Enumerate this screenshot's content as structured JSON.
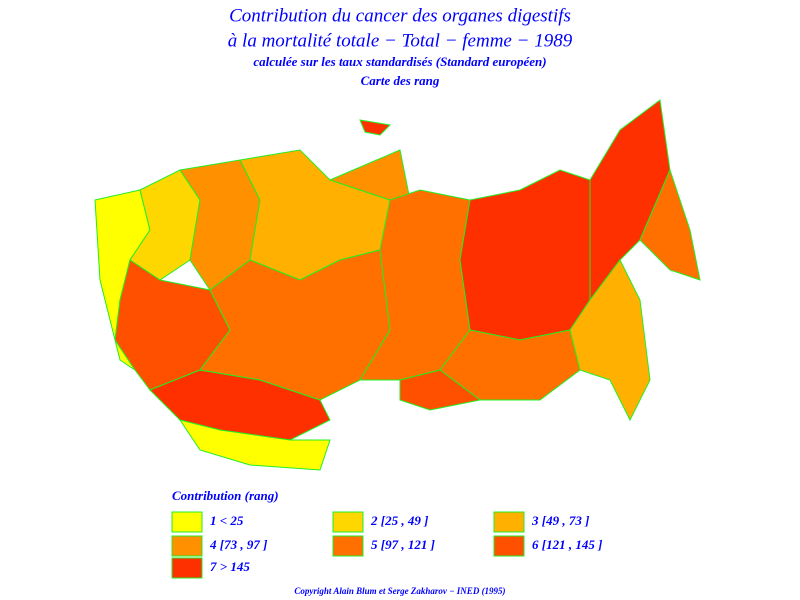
{
  "header": {
    "title_lines": [
      "Contribution du cancer des organes digestifs",
      "à la mortalité totale − Total − femme − 1989"
    ],
    "subtitle": "calculée sur les taux standardisés (Standard européen)",
    "map_kind": "Carte des rang"
  },
  "legend": {
    "title": "Contribution (rang)",
    "items": [
      {
        "label": "1  <  25",
        "color": "#ffff00"
      },
      {
        "label": "2  [25 , 49 ]",
        "color": "#ffd700"
      },
      {
        "label": "3  [49 , 73 ]",
        "color": "#ffb000"
      },
      {
        "label": "4  [73 , 97 ]",
        "color": "#ff9000"
      },
      {
        "label": "5  [97 , 121 ]",
        "color": "#ff7000"
      },
      {
        "label": "6  [121 , 145 ]",
        "color": "#ff5000"
      },
      {
        "label": "7  >  145",
        "color": "#ff3000"
      }
    ]
  },
  "footer": {
    "copyright": "Copyright Alain Blum et Serge Zakharov − INED (1995)"
  }
}
